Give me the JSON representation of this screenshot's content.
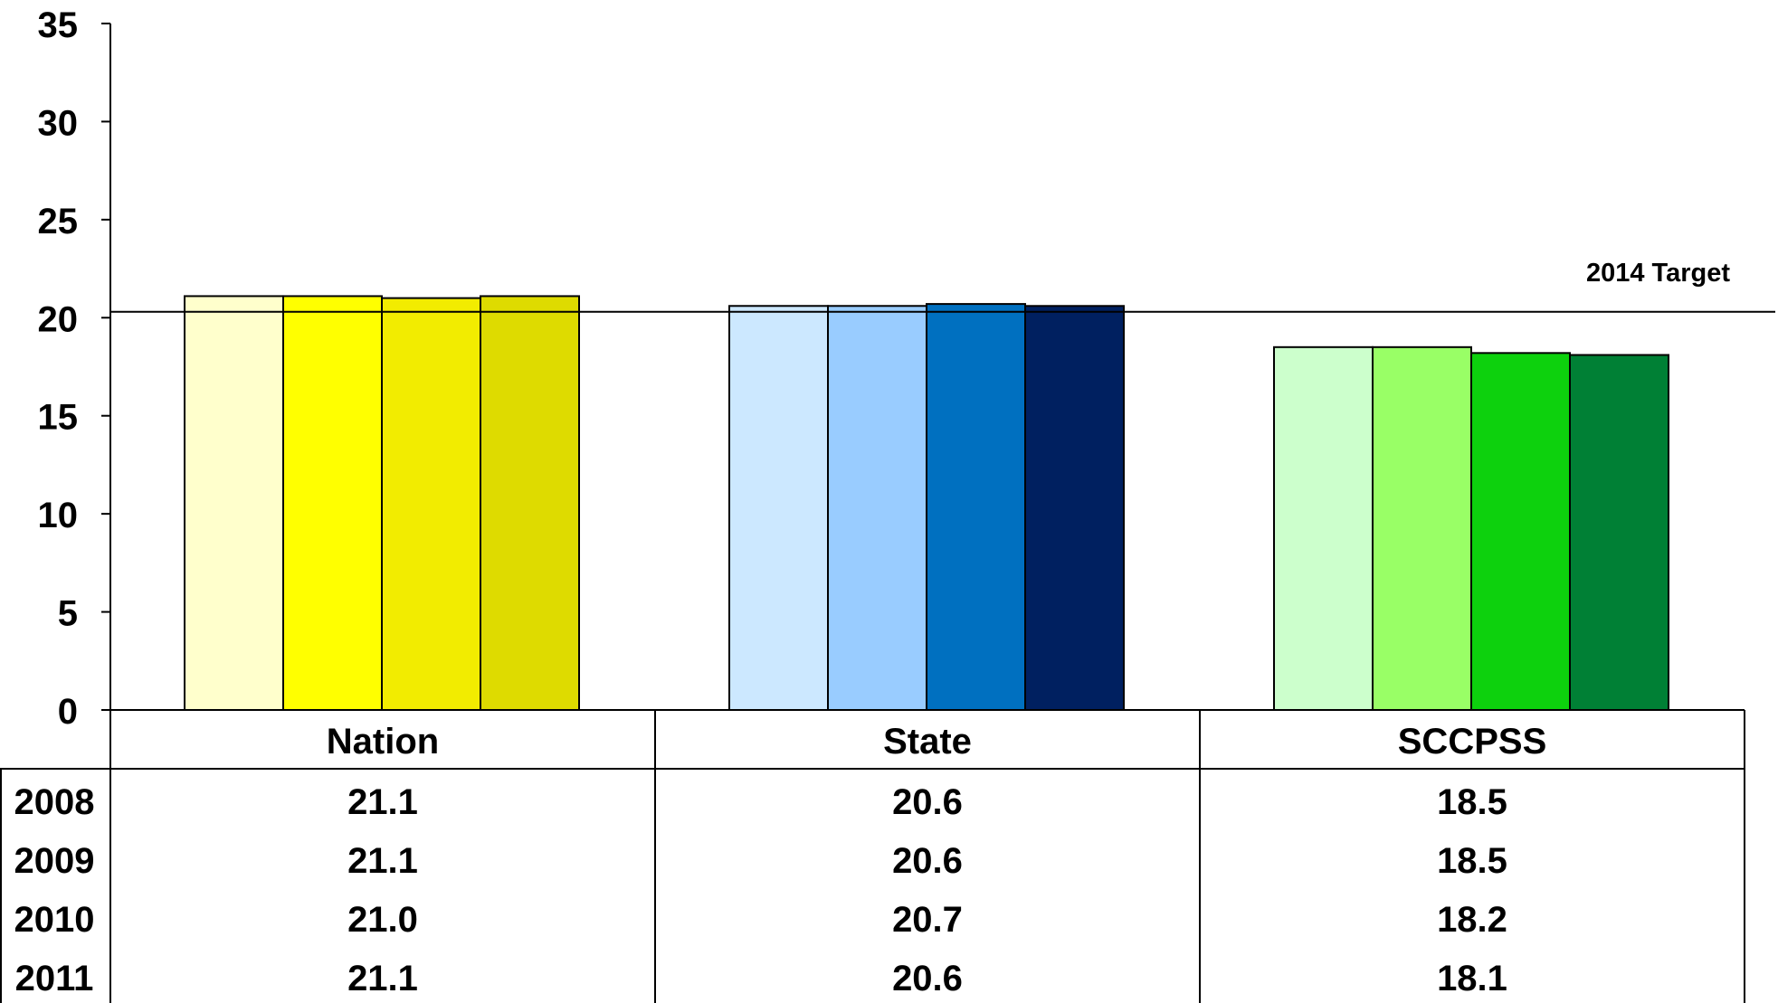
{
  "chart_data": {
    "type": "bar",
    "title": "",
    "xlabel": "",
    "ylabel": "",
    "categories": [
      "Nation",
      "State",
      "SCCPSS"
    ],
    "series": [
      {
        "name": "2008",
        "values": [
          21.1,
          20.6,
          18.5
        ]
      },
      {
        "name": "2009",
        "values": [
          21.1,
          20.6,
          18.5
        ]
      },
      {
        "name": "2010",
        "values": [
          21.0,
          20.7,
          18.2
        ]
      },
      {
        "name": "2011",
        "values": [
          21.1,
          20.6,
          18.1
        ]
      }
    ],
    "ylim": [
      0,
      35
    ],
    "yticks": [
      0,
      5,
      10,
      15,
      20,
      25,
      30,
      35
    ],
    "grid": false,
    "legend": "data table below chart",
    "colors": [
      [
        "#FFFFCC",
        "#FFFF00",
        "#F2EC00",
        "#DEDB00"
      ],
      [
        "#CCE8FF",
        "#99CCFF",
        "#0070C0",
        "#002060"
      ],
      [
        "#CCFFCC",
        "#99FF66",
        "#0DD10D",
        "#008035"
      ]
    ],
    "reference_line": {
      "label": "2014 Target",
      "value": 20.3
    },
    "table": {
      "rows": [
        {
          "label": "2008",
          "cells": [
            "21.1",
            "20.6",
            "18.5"
          ]
        },
        {
          "label": "2009",
          "cells": [
            "21.1",
            "20.6",
            "18.5"
          ]
        },
        {
          "label": "2010",
          "cells": [
            "21.0",
            "20.7",
            "18.2"
          ]
        },
        {
          "label": "2011",
          "cells": [
            "21.1",
            "20.6",
            "18.1"
          ]
        }
      ]
    }
  }
}
